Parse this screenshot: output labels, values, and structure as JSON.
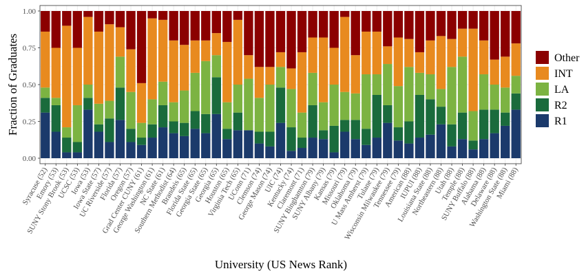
{
  "chart_data": {
    "type": "bar",
    "stacked": true,
    "xlabel": "University (US News Rank)",
    "ylabel": "Fraction of Graduates",
    "ylim": [
      0,
      1
    ],
    "yticks": [
      "0.00",
      "0.25",
      "0.50",
      "0.75",
      "1.00"
    ],
    "grid": true,
    "legend_position": "right",
    "categories": [
      "Syracuse (52)",
      "Emory (53)",
      "SUNY Stony Brook (53)",
      "UCSC (53)",
      "Iowa (53)",
      "Iowa State (57)",
      "UC Riverside (57)",
      "Florida (57)",
      "Oregon (57)",
      "Grad Center CUNY (61)",
      "George Washington (61)",
      "NC State (61)",
      "Southern Methodist (64)",
      "Brandeis (65)",
      "Florida State (65)",
      "Georgia State (65)",
      "Georgia (65)",
      "Houston (65)",
      "Virginia Tech (65)",
      "UConn (71)",
      "Clemson (74)",
      "George Mason (74)",
      "UIC (74)",
      "Kentucky (74)",
      "Claremont (71)",
      "SUNY Binghamton (79)",
      "SUNY Albany (79)",
      "Kansas (79)",
      "Missouri (79)",
      "Oklahoma (79)",
      "U Mass Amherst (79)",
      "Tulane (79)",
      "Wisconsin Milwaukee (79)",
      "Tennessee (79)",
      "American (88)",
      "IUPUI (88)",
      "Louisiana State (88)",
      "Northeastern (88)",
      "Utah (88)",
      "Temple (88)",
      "SUNY Buffalo (88)",
      "Alabama (88)",
      "Delaware (88)",
      "Washington State (88)",
      "Miami (88)"
    ],
    "series": [
      {
        "name": "R1",
        "color": "#1b3a6b",
        "values": [
          0.31,
          0.18,
          0.04,
          0.04,
          0.33,
          0.18,
          0.11,
          0.26,
          0.11,
          0.09,
          0.14,
          0.21,
          0.17,
          0.15,
          0.2,
          0.17,
          0.3,
          0.13,
          0.19,
          0.19,
          0.1,
          0.08,
          0.24,
          0.05,
          0.07,
          0.14,
          0.13,
          0.04,
          0.18,
          0.13,
          0.09,
          0.14,
          0.24,
          0.12,
          0.1,
          0.14,
          0.16,
          0.23,
          0.08,
          0.13,
          0.06,
          0.13,
          0.17,
          0.22,
          0.33
        ]
      },
      {
        "name": "R2",
        "color": "#1a6b3c",
        "values": [
          0.1,
          0.18,
          0.1,
          0.07,
          0.08,
          0.05,
          0.16,
          0.22,
          0.09,
          0.05,
          0.09,
          0.15,
          0.08,
          0.09,
          0.12,
          0.13,
          0.25,
          0.07,
          0.12,
          0.0,
          0.08,
          0.1,
          0.24,
          0.16,
          0.07,
          0.22,
          0.06,
          0.18,
          0.08,
          0.13,
          0.11,
          0.29,
          0.12,
          0.09,
          0.15,
          0.29,
          0.24,
          0.12,
          0.15,
          0.18,
          0.06,
          0.2,
          0.16,
          0.09,
          0.11
        ]
      },
      {
        "name": "LA",
        "color": "#7cb342",
        "values": [
          0.07,
          0.05,
          0.07,
          0.25,
          0.09,
          0.14,
          0.12,
          0.21,
          0.25,
          0.1,
          0.17,
          0.16,
          0.13,
          0.22,
          0.26,
          0.36,
          0.15,
          0.18,
          0.19,
          0.35,
          0.23,
          0.32,
          0.14,
          0.26,
          0.17,
          0.22,
          0.19,
          0.28,
          0.19,
          0.18,
          0.37,
          0.14,
          0.28,
          0.28,
          0.37,
          0.15,
          0.17,
          0.12,
          0.39,
          0.38,
          0.2,
          0.24,
          0.17,
          0.17,
          0.12
        ]
      },
      {
        "name": "INT",
        "color": "#e88a1f",
        "values": [
          0.38,
          0.34,
          0.69,
          0.39,
          0.46,
          0.49,
          0.52,
          0.2,
          0.29,
          0.27,
          0.55,
          0.42,
          0.42,
          0.31,
          0.22,
          0.14,
          0.15,
          0.41,
          0.44,
          0.16,
          0.21,
          0.12,
          0.1,
          0.14,
          0.41,
          0.24,
          0.44,
          0.25,
          0.51,
          0.26,
          0.29,
          0.29,
          0.12,
          0.33,
          0.19,
          0.14,
          0.23,
          0.36,
          0.19,
          0.19,
          0.56,
          0.23,
          0.17,
          0.21,
          0.22
        ]
      },
      {
        "name": "Other",
        "color": "#8b0000",
        "values": [
          0.14,
          0.25,
          0.1,
          0.25,
          0.04,
          0.14,
          0.09,
          0.11,
          0.26,
          0.49,
          0.05,
          0.06,
          0.2,
          0.23,
          0.2,
          0.2,
          0.15,
          0.21,
          0.06,
          0.3,
          0.38,
          0.38,
          0.28,
          0.39,
          0.28,
          0.18,
          0.18,
          0.25,
          0.04,
          0.3,
          0.14,
          0.14,
          0.24,
          0.18,
          0.19,
          0.28,
          0.2,
          0.17,
          0.19,
          0.12,
          0.12,
          0.2,
          0.33,
          0.31,
          0.22
        ]
      }
    ]
  }
}
